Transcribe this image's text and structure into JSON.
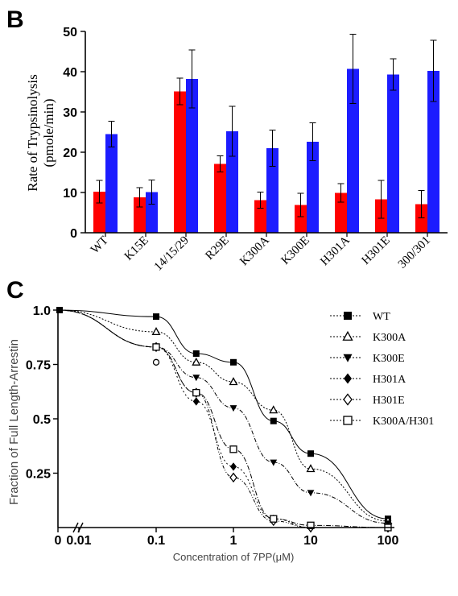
{
  "panels": {
    "b_label": "B",
    "c_label": "C"
  },
  "colors": {
    "red": "#ff0000",
    "blue": "#1c1cff",
    "black": "#000000"
  },
  "chart_data": [
    {
      "panel": "B",
      "type": "bar",
      "ylabel_line1": "Rate of Trypsinolysis",
      "ylabel_line2": "(pmole/min)",
      "ylim": [
        0,
        50
      ],
      "yticks": [
        "0",
        "10",
        "20",
        "30",
        "40",
        "50"
      ],
      "categories": [
        "WT",
        "K15E",
        "14/15/29",
        "R29E",
        "K300A",
        "K300E",
        "H301A",
        "H301E",
        "300/301"
      ],
      "series": [
        {
          "values": [
            10.2,
            8.8,
            35.1,
            17.1,
            8.1,
            6.9,
            9.9,
            8.3,
            7.1
          ],
          "errors": [
            2.8,
            2.4,
            3.3,
            2.0,
            2.0,
            2.9,
            2.3,
            4.7,
            3.4
          ]
        },
        {
          "values": [
            24.5,
            10.1,
            38.2,
            25.2,
            21.0,
            22.6,
            40.7,
            39.3,
            40.2
          ],
          "errors": [
            3.2,
            3.0,
            7.2,
            6.2,
            4.5,
            4.7,
            8.6,
            3.9,
            7.6
          ]
        }
      ]
    },
    {
      "panel": "C",
      "type": "scatter",
      "ylabel": "Fraction of Full Length-Arrestin",
      "xlabel": "Concentration of 7PP(μM)",
      "x_scale": "log",
      "xticks": [
        "0",
        "0.01",
        "0.1",
        "1",
        "10",
        "100"
      ],
      "yticks": [
        "1.0",
        "0.75",
        "0.5",
        "0.25"
      ],
      "legend_position": "right",
      "series": [
        {
          "name": "WT",
          "marker": "square-filled",
          "x": [
            0.1,
            0.33,
            1,
            3.3,
            10,
            100
          ],
          "y": [
            0.97,
            0.8,
            0.76,
            0.49,
            0.34,
            0.04
          ]
        },
        {
          "name": "K300A",
          "marker": "triangle-open",
          "x": [
            0.1,
            0.33,
            1,
            3.3,
            10,
            100
          ],
          "y": [
            0.9,
            0.76,
            0.67,
            0.54,
            0.27,
            0.03
          ]
        },
        {
          "name": "K300E",
          "marker": "triangle-down-filled",
          "x": [
            0.1,
            0.33,
            1,
            3.3,
            10,
            100
          ],
          "y": [
            0.83,
            0.69,
            0.55,
            0.3,
            0.16,
            0.02
          ]
        },
        {
          "name": "H301A",
          "marker": "diamond-filled",
          "x": [
            0.1,
            0.33,
            1,
            3.3,
            10,
            100
          ],
          "y": [
            0.83,
            0.58,
            0.28,
            0.04,
            0.0,
            0.0
          ]
        },
        {
          "name": "H301E",
          "marker": "diamond-open",
          "x": [
            0.1,
            0.33,
            1,
            3.3,
            10,
            100
          ],
          "y": [
            0.83,
            0.62,
            0.23,
            0.03,
            0.0,
            0.0
          ]
        },
        {
          "name": "K300A/H301",
          "marker": "square-open",
          "x": [
            0.1,
            0.33,
            1,
            3.3,
            10,
            100
          ],
          "y": [
            0.83,
            0.62,
            0.36,
            0.04,
            0.01,
            0.0
          ]
        }
      ],
      "extra_points": [
        {
          "x": 0.1,
          "y": 0.76,
          "marker": "circle-open"
        }
      ]
    }
  ]
}
